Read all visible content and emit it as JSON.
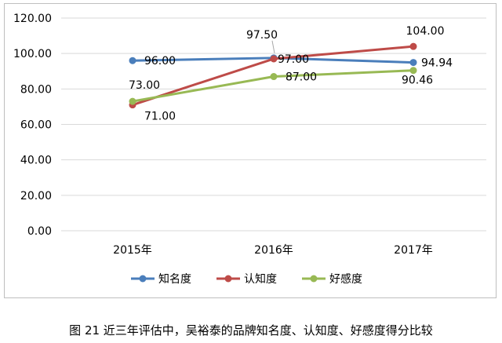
{
  "chart_data": {
    "type": "line",
    "categories": [
      "2015年",
      "2016年",
      "2017年"
    ],
    "series": [
      {
        "name": "知名度",
        "values": [
          96.0,
          97.5,
          94.94
        ],
        "labels": [
          "96.00",
          "97.50",
          "94.94"
        ],
        "color": "#4a7ebb"
      },
      {
        "name": "认知度",
        "values": [
          71.0,
          97.0,
          104.0
        ],
        "labels": [
          "71.00",
          "97.00",
          "104.00"
        ],
        "color": "#be4b48"
      },
      {
        "name": "好感度",
        "values": [
          73.0,
          87.0,
          90.46
        ],
        "labels": [
          "73.00",
          "87.00",
          "90.46"
        ],
        "color": "#98b954"
      }
    ],
    "ylim": [
      0,
      120
    ],
    "yticks": [
      "0.00",
      "20.00",
      "40.00",
      "60.00",
      "80.00",
      "100.00",
      "120.00"
    ],
    "grid": true,
    "legend": "bottom"
  },
  "caption": "图 21 近三年评估中，吴裕泰的品牌知名度、认知度、好感度得分比较"
}
